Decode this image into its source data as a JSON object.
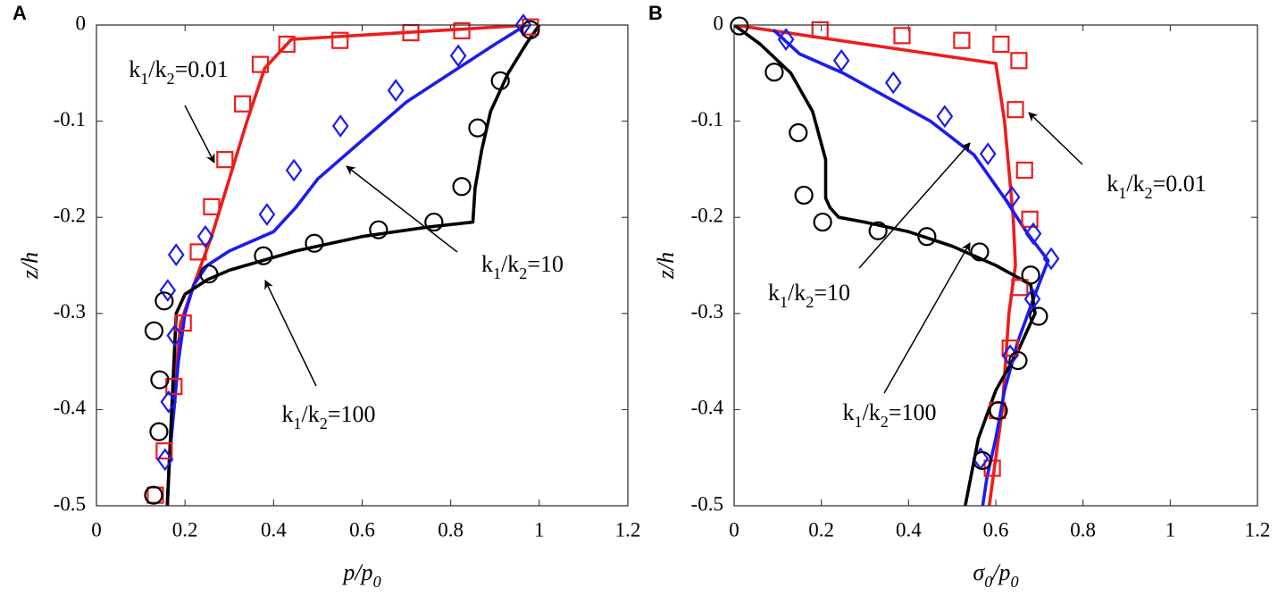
{
  "chart_data": [
    {
      "type": "line",
      "panel": "A",
      "xlabel": "p/p0",
      "ylabel": "z/h",
      "xlim": [
        0,
        1.2
      ],
      "ylim": [
        -0.5,
        0
      ],
      "xticks": [
        0,
        0.2,
        0.4,
        0.6,
        0.8,
        1,
        1.2
      ],
      "yticks": [
        0,
        -0.1,
        -0.2,
        -0.3,
        -0.4,
        -0.5
      ],
      "annotations": [
        "k1/k2=0.01",
        "k1/k2=10",
        "k1/k2=100"
      ],
      "series": [
        {
          "color": "#ee1c1c",
          "line": true,
          "x": [
            0.98,
            0.44,
            0.38,
            0.34,
            0.3,
            0.26,
            0.22,
            0.19,
            0.175,
            0.165,
            0.16
          ],
          "values": [
            0,
            -0.015,
            -0.045,
            -0.1,
            -0.16,
            -0.22,
            -0.27,
            -0.31,
            -0.38,
            -0.45,
            -0.5
          ]
        },
        {
          "color": "#1c1cee",
          "line": true,
          "x": [
            0.97,
            0.9,
            0.8,
            0.7,
            0.6,
            0.5,
            0.45,
            0.4,
            0.3,
            0.25,
            0.22,
            0.2,
            0.185,
            0.175,
            0.165,
            0.16
          ],
          "values": [
            0,
            -0.02,
            -0.05,
            -0.08,
            -0.12,
            -0.16,
            -0.19,
            -0.215,
            -0.235,
            -0.25,
            -0.27,
            -0.3,
            -0.35,
            -0.4,
            -0.45,
            -0.5
          ]
        },
        {
          "color": "#000000",
          "line": true,
          "x": [
            1.0,
            0.97,
            0.93,
            0.89,
            0.87,
            0.855,
            0.85,
            0.75,
            0.6,
            0.45,
            0.3,
            0.25,
            0.2,
            0.18,
            0.175,
            0.17,
            0.165,
            0.16
          ],
          "values": [
            0,
            -0.02,
            -0.05,
            -0.09,
            -0.13,
            -0.17,
            -0.205,
            -0.21,
            -0.22,
            -0.235,
            -0.255,
            -0.265,
            -0.28,
            -0.3,
            -0.35,
            -0.4,
            -0.45,
            -0.5
          ]
        },
        {
          "color": "#ee1c1c",
          "marker": "square",
          "x": [
            0.98,
            0.825,
            0.71,
            0.55,
            0.43,
            0.37,
            0.33,
            0.29,
            0.26,
            0.23,
            0.196,
            0.175,
            0.153,
            0.133
          ],
          "values": [
            -0.002,
            -0.006,
            -0.008,
            -0.016,
            -0.02,
            -0.041,
            -0.082,
            -0.14,
            -0.189,
            -0.236,
            -0.31,
            -0.376,
            -0.443,
            -0.489
          ]
        },
        {
          "color": "#1c1cee",
          "marker": "diamond",
          "x": [
            0.964,
            0.817,
            0.676,
            0.551,
            0.446,
            0.385,
            0.246,
            0.18,
            0.161,
            0.177,
            0.163,
            0.155
          ],
          "values": [
            0,
            -0.032,
            -0.068,
            -0.105,
            -0.151,
            -0.197,
            -0.22,
            -0.239,
            -0.276,
            -0.323,
            -0.392,
            -0.452
          ]
        },
        {
          "color": "#000000",
          "marker": "circle",
          "x": [
            0.98,
            0.912,
            0.861,
            0.825,
            0.762,
            0.637,
            0.492,
            0.377,
            0.254,
            0.153,
            0.13,
            0.143,
            0.141,
            0.129
          ],
          "values": [
            -0.005,
            -0.058,
            -0.107,
            -0.168,
            -0.205,
            -0.213,
            -0.227,
            -0.24,
            -0.259,
            -0.287,
            -0.318,
            -0.369,
            -0.423,
            -0.489
          ]
        }
      ]
    },
    {
      "type": "line",
      "panel": "B",
      "xlabel": "σ0/p0",
      "ylabel": "z/h",
      "xlim": [
        0,
        1.2
      ],
      "ylim": [
        -0.5,
        0
      ],
      "xticks": [
        0,
        0.2,
        0.4,
        0.6,
        0.8,
        1,
        1.2
      ],
      "yticks": [
        0,
        -0.1,
        -0.2,
        -0.3,
        -0.4,
        -0.5
      ],
      "annotations": [
        "k1/k2=0.01",
        "k1/k2=10",
        "k1/k2=100"
      ],
      "series": [
        {
          "color": "#ee1c1c",
          "line": true,
          "x": [
            0,
            0.6,
            0.62,
            0.64,
            0.645,
            0.63,
            0.615,
            0.6,
            0.585
          ],
          "values": [
            0,
            -0.04,
            -0.1,
            -0.2,
            -0.25,
            -0.3,
            -0.4,
            -0.45,
            -0.5
          ]
        },
        {
          "color": "#1c1cee",
          "line": true,
          "x": [
            0.09,
            0.15,
            0.25,
            0.35,
            0.45,
            0.55,
            0.62,
            0.67,
            0.72,
            0.69,
            0.65,
            0.62,
            0.6,
            0.58,
            0.57
          ],
          "values": [
            -0.005,
            -0.03,
            -0.05,
            -0.075,
            -0.1,
            -0.135,
            -0.18,
            -0.215,
            -0.245,
            -0.28,
            -0.33,
            -0.38,
            -0.43,
            -0.47,
            -0.5
          ]
        },
        {
          "color": "#000000",
          "line": true,
          "x": [
            0,
            0.06,
            0.13,
            0.18,
            0.21,
            0.21,
            0.22,
            0.24,
            0.3,
            0.4,
            0.5,
            0.6,
            0.68,
            0.69,
            0.65,
            0.6,
            0.56,
            0.53
          ],
          "values": [
            0,
            -0.02,
            -0.05,
            -0.09,
            -0.14,
            -0.18,
            -0.19,
            -0.2,
            -0.205,
            -0.215,
            -0.23,
            -0.25,
            -0.27,
            -0.3,
            -0.34,
            -0.38,
            -0.43,
            -0.5
          ]
        },
        {
          "color": "#ee1c1c",
          "marker": "square",
          "x": [
            0.197,
            0.385,
            0.522,
            0.612,
            0.653,
            0.645,
            0.666,
            0.678,
            0.655,
            0.633,
            0.604,
            0.592
          ],
          "values": [
            -0.005,
            -0.011,
            -0.016,
            -0.02,
            -0.037,
            -0.088,
            -0.151,
            -0.202,
            -0.273,
            -0.336,
            -0.401,
            -0.461
          ]
        },
        {
          "color": "#1c1cee",
          "marker": "diamond",
          "x": [
            0.119,
            0.246,
            0.365,
            0.483,
            0.582,
            0.637,
            0.686,
            0.727,
            0.684,
            0.633,
            0.565
          ],
          "values": [
            -0.015,
            -0.037,
            -0.06,
            -0.095,
            -0.134,
            -0.179,
            -0.217,
            -0.243,
            -0.285,
            -0.344,
            -0.451
          ]
        },
        {
          "color": "#000000",
          "marker": "circle",
          "x": [
            0.012,
            0.092,
            0.147,
            0.16,
            0.203,
            0.33,
            0.442,
            0.563,
            0.68,
            0.698,
            0.651,
            0.606,
            0.569
          ],
          "values": [
            -0.001,
            -0.049,
            -0.112,
            -0.177,
            -0.205,
            -0.214,
            -0.22,
            -0.236,
            -0.26,
            -0.303,
            -0.349,
            -0.401,
            -0.453
          ]
        }
      ]
    }
  ]
}
